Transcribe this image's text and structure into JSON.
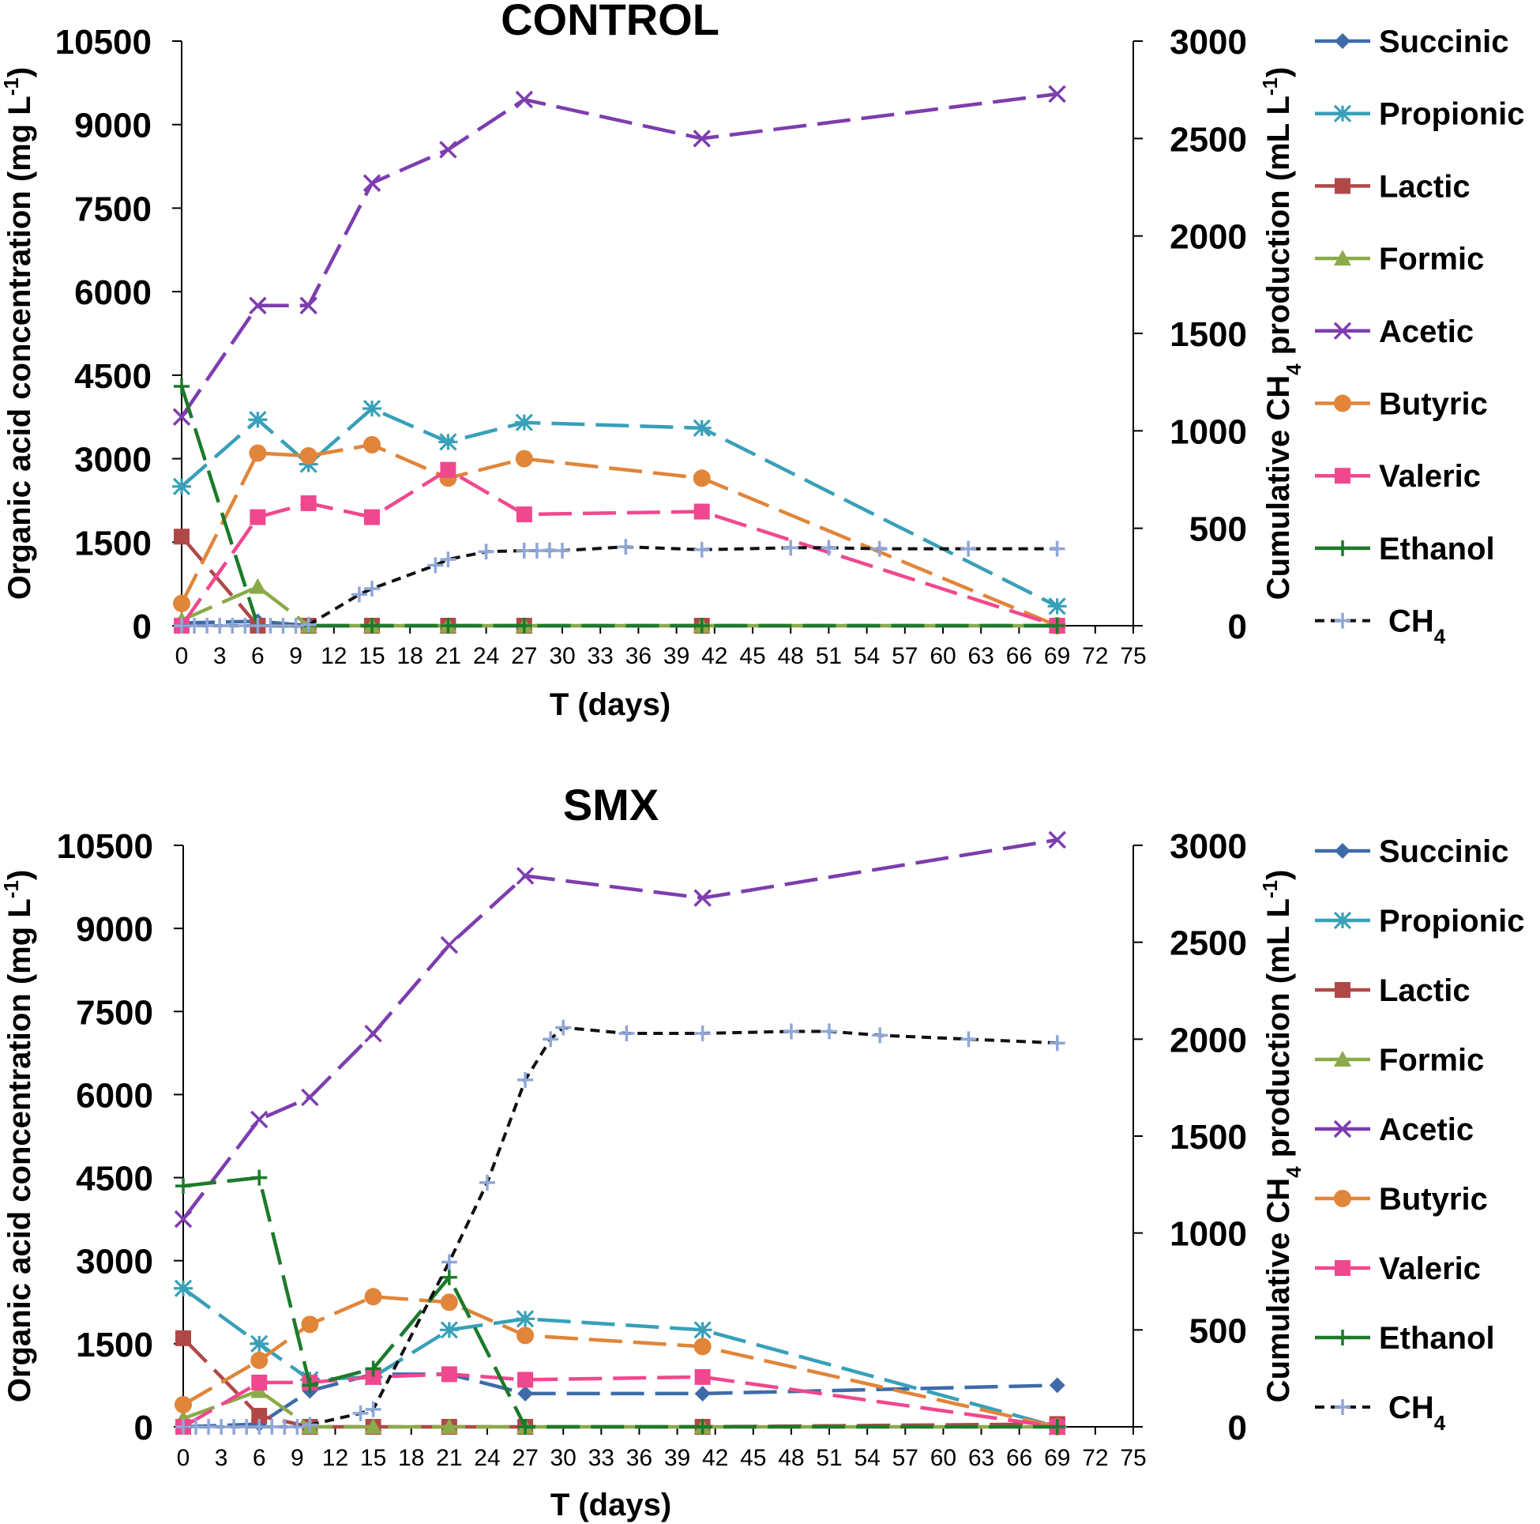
{
  "chart_data": [
    {
      "type": "line",
      "title": "CONTROL",
      "xlabel": "T (days)",
      "ylabel": "Organic acid concentration (mg L-1)",
      "ylabel_parts": [
        "Organic acid concentration (mg L",
        "-1",
        ")"
      ],
      "y2label": "Cumulative CH4 production (mL L-1)",
      "y2label_parts": [
        "Cumulative CH",
        "4",
        " production (mL L",
        "-1",
        ")"
      ],
      "xlim": [
        0,
        75
      ],
      "ylim": [
        0,
        10500
      ],
      "y2lim": [
        0,
        3000
      ],
      "x_ticks": [
        0,
        3,
        6,
        9,
        12,
        15,
        18,
        21,
        24,
        27,
        30,
        33,
        36,
        39,
        42,
        45,
        48,
        51,
        54,
        57,
        60,
        63,
        66,
        69,
        72,
        75
      ],
      "y_ticks": [
        0,
        1500,
        3000,
        4500,
        6000,
        7500,
        9000,
        10500
      ],
      "y2_ticks": [
        0,
        500,
        1000,
        1500,
        2000,
        2500,
        3000
      ],
      "legend": [
        "Succinic",
        "Propionic",
        "Lactic",
        "Formic",
        "Acetic",
        "Butyric",
        "Valeric",
        "Ethanol",
        "CH4"
      ],
      "series": [
        {
          "name": "Succinic",
          "color": "#3E6BA8",
          "marker": "diamond",
          "axis": "left",
          "x": [
            0,
            6,
            10,
            15,
            21,
            27,
            41,
            69
          ],
          "values": [
            50,
            80,
            0,
            0,
            0,
            0,
            0,
            0
          ]
        },
        {
          "name": "Propionic",
          "color": "#38A0B8",
          "marker": "asterisk",
          "axis": "left",
          "x": [
            0,
            6,
            10,
            15,
            21,
            27,
            41,
            69
          ],
          "values": [
            2500,
            3700,
            2900,
            3900,
            3300,
            3650,
            3550,
            350
          ]
        },
        {
          "name": "Lactic",
          "color": "#B04848",
          "marker": "square",
          "axis": "left",
          "x": [
            0,
            6,
            10,
            15,
            21,
            27,
            41,
            69
          ],
          "values": [
            1600,
            0,
            0,
            0,
            0,
            0,
            0,
            0
          ]
        },
        {
          "name": "Formic",
          "color": "#8BAA4A",
          "marker": "triangle",
          "axis": "left",
          "x": [
            0,
            6,
            10,
            15,
            21,
            27,
            41,
            69
          ],
          "values": [
            100,
            700,
            0,
            0,
            0,
            0,
            0,
            0
          ]
        },
        {
          "name": "Acetic",
          "color": "#7D3DAE",
          "marker": "x",
          "axis": "left",
          "x": [
            0,
            6,
            10,
            15,
            21,
            27,
            41,
            69
          ],
          "values": [
            3750,
            5750,
            5750,
            7950,
            8550,
            9450,
            8750,
            9550
          ]
        },
        {
          "name": "Butyric",
          "color": "#E0853A",
          "marker": "circle",
          "axis": "left",
          "x": [
            0,
            6,
            10,
            15,
            21,
            27,
            41,
            69
          ],
          "values": [
            400,
            3100,
            3050,
            3250,
            2650,
            3000,
            2650,
            0
          ]
        },
        {
          "name": "Valeric",
          "color": "#F0488E",
          "marker": "square",
          "axis": "left",
          "x": [
            0,
            6,
            10,
            15,
            21,
            27,
            41,
            69
          ],
          "values": [
            0,
            1950,
            2200,
            1950,
            2800,
            2000,
            2050,
            0
          ]
        },
        {
          "name": "Ethanol",
          "color": "#1C7A2A",
          "marker": "plus",
          "axis": "left",
          "x": [
            0,
            6,
            10,
            15,
            21,
            27,
            41,
            69
          ],
          "values": [
            4300,
            0,
            0,
            0,
            0,
            0,
            0,
            0
          ]
        },
        {
          "name": "CH4",
          "color": "#111111",
          "marker": "plus",
          "axis": "right",
          "x": [
            0,
            1,
            2,
            3,
            4,
            5,
            6,
            7,
            8,
            9,
            10,
            14,
            15,
            20,
            21,
            24,
            27,
            28,
            29,
            30,
            35,
            41,
            48,
            51,
            55,
            62,
            69
          ],
          "values": [
            0,
            0,
            0,
            0,
            0,
            0,
            0,
            0,
            0,
            0,
            5,
            160,
            190,
            310,
            340,
            380,
            385,
            385,
            387,
            385,
            405,
            390,
            400,
            400,
            395,
            395,
            395
          ]
        }
      ]
    },
    {
      "type": "line",
      "title": "SMX",
      "xlabel": "T (days)",
      "ylabel": "Organic acid concentration (mg L-1)",
      "ylabel_parts": [
        "Organic acid concentration (mg L",
        "-1",
        ")"
      ],
      "y2label": "Cumulative CH4 production (mL L-1)",
      "y2label_parts": [
        "Cumulative CH",
        "4",
        " production (mL L",
        "-1",
        ")"
      ],
      "xlim": [
        0,
        75
      ],
      "ylim": [
        0,
        10500
      ],
      "y2lim": [
        0,
        3000
      ],
      "x_ticks": [
        0,
        3,
        6,
        9,
        12,
        15,
        18,
        21,
        24,
        27,
        30,
        33,
        36,
        39,
        42,
        45,
        48,
        51,
        54,
        57,
        60,
        63,
        66,
        69,
        72,
        75
      ],
      "y_ticks": [
        0,
        1500,
        3000,
        4500,
        6000,
        7500,
        9000,
        10500
      ],
      "y2_ticks": [
        0,
        500,
        1000,
        1500,
        2000,
        2500,
        3000
      ],
      "legend": [
        "Succinic",
        "Propionic",
        "Lactic",
        "Formic",
        "Acetic",
        "Butyric",
        "Valeric",
        "Ethanol",
        "CH4"
      ],
      "series": [
        {
          "name": "Succinic",
          "color": "#3E6BA8",
          "marker": "diamond",
          "axis": "left",
          "x": [
            0,
            6,
            10,
            15,
            21,
            27,
            41,
            69
          ],
          "values": [
            0,
            50,
            650,
            950,
            950,
            600,
            600,
            750
          ]
        },
        {
          "name": "Propionic",
          "color": "#38A0B8",
          "marker": "asterisk",
          "axis": "left",
          "x": [
            0,
            6,
            10,
            15,
            21,
            27,
            41,
            69
          ],
          "values": [
            2500,
            1500,
            850,
            900,
            1750,
            1950,
            1750,
            0
          ]
        },
        {
          "name": "Lactic",
          "color": "#B04848",
          "marker": "square",
          "axis": "left",
          "x": [
            0,
            6,
            10,
            15,
            21,
            27,
            41,
            69
          ],
          "values": [
            1600,
            200,
            0,
            0,
            0,
            0,
            0,
            50
          ]
        },
        {
          "name": "Formic",
          "color": "#8BAA4A",
          "marker": "triangle",
          "axis": "left",
          "x": [
            0,
            6,
            10,
            15,
            21,
            27,
            41,
            69
          ],
          "values": [
            150,
            650,
            0,
            0,
            0,
            0,
            0,
            0
          ]
        },
        {
          "name": "Acetic",
          "color": "#7D3DAE",
          "marker": "x",
          "axis": "left",
          "x": [
            0,
            6,
            10,
            15,
            21,
            27,
            41,
            69
          ],
          "values": [
            3750,
            5550,
            5950,
            7100,
            8700,
            9950,
            9550,
            10600
          ]
        },
        {
          "name": "Butyric",
          "color": "#E0853A",
          "marker": "circle",
          "axis": "left",
          "x": [
            0,
            6,
            10,
            15,
            21,
            27,
            41,
            69
          ],
          "values": [
            400,
            1200,
            1850,
            2350,
            2250,
            1650,
            1450,
            0
          ]
        },
        {
          "name": "Valeric",
          "color": "#F0488E",
          "marker": "square",
          "axis": "left",
          "x": [
            0,
            6,
            10,
            15,
            21,
            27,
            41,
            69
          ],
          "values": [
            0,
            800,
            800,
            900,
            950,
            850,
            900,
            0
          ]
        },
        {
          "name": "Ethanol",
          "color": "#1C7A2A",
          "marker": "plus",
          "axis": "left",
          "x": [
            0,
            6,
            10,
            15,
            21,
            27,
            41,
            69
          ],
          "values": [
            4350,
            4500,
            750,
            1050,
            2700,
            0,
            0,
            0
          ]
        },
        {
          "name": "CH4",
          "color": "#111111",
          "marker": "plus",
          "axis": "right",
          "x": [
            0,
            1,
            2,
            3,
            4,
            5,
            6,
            7,
            8,
            9,
            10,
            14,
            15,
            21,
            24,
            27,
            29,
            30,
            35,
            41,
            48,
            51,
            55,
            62,
            69
          ],
          "values": [
            0,
            0,
            0,
            0,
            0,
            0,
            0,
            0,
            0,
            0,
            10,
            70,
            90,
            850,
            1260,
            1790,
            2000,
            2060,
            2030,
            2030,
            2040,
            2040,
            2020,
            2000,
            1980
          ]
        }
      ]
    }
  ]
}
